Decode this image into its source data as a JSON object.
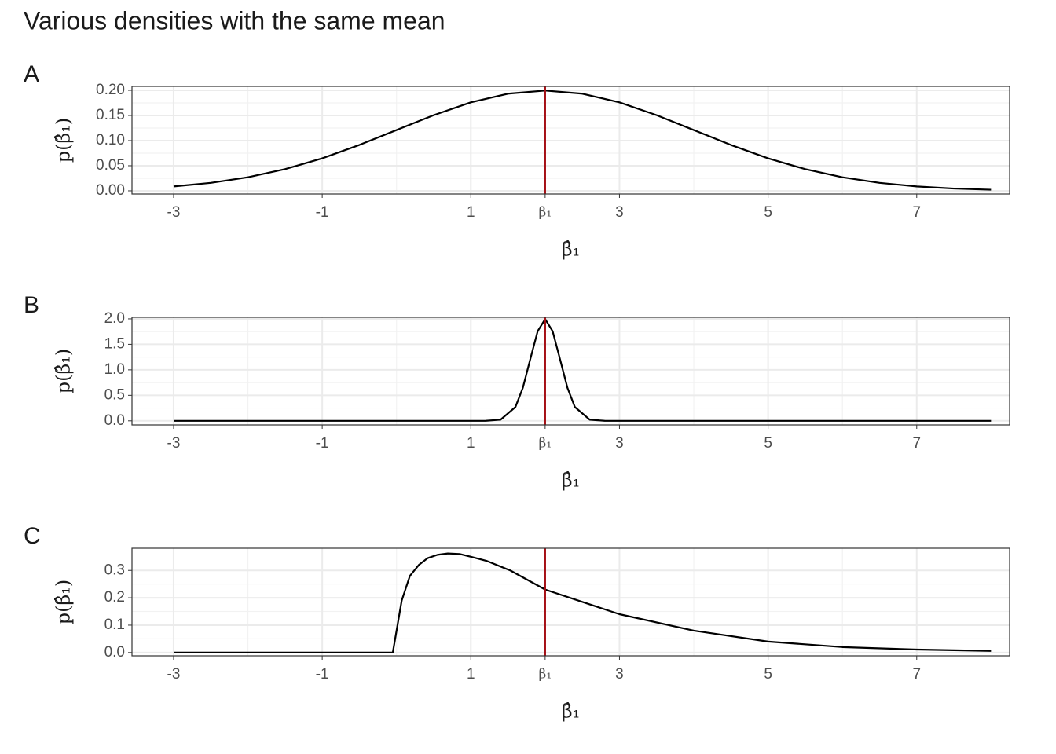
{
  "title": "Various densities with the same mean",
  "chart_data": [
    {
      "type": "line",
      "tag": "A",
      "xlabel": "β̂₁",
      "ylabel": "p(β̂₁)",
      "x": [
        -3,
        -2.5,
        -2,
        -1.5,
        -1,
        -0.5,
        0,
        0.5,
        1,
        1.5,
        2,
        2.5,
        3,
        3.5,
        4,
        4.5,
        5,
        5.5,
        6,
        6.5,
        7,
        7.5,
        8
      ],
      "values": [
        0.00876,
        0.01588,
        0.027,
        0.04315,
        0.06476,
        0.09132,
        0.12098,
        0.15056,
        0.17603,
        0.19333,
        0.19947,
        0.19333,
        0.17603,
        0.15056,
        0.12098,
        0.09132,
        0.06476,
        0.04315,
        0.027,
        0.01588,
        0.00876,
        0.00455,
        0.00222
      ],
      "color": "#000000",
      "vline": 2,
      "vline_color": "#a50f15",
      "xlim": [
        -3.56,
        8.25
      ],
      "ylim": [
        -0.0063,
        0.2078
      ],
      "xticks": [
        -3,
        -1,
        1,
        {
          "value": 2,
          "label": "β₁"
        },
        3,
        5,
        7
      ],
      "yticks": [
        {
          "value": 0,
          "label": "0.00"
        },
        {
          "value": 0.05,
          "label": "0.05"
        },
        {
          "value": 0.1,
          "label": "0.10"
        },
        {
          "value": 0.15,
          "label": "0.15"
        },
        {
          "value": 0.2,
          "label": "0.20"
        }
      ],
      "grid": true
    },
    {
      "type": "line",
      "tag": "B",
      "xlabel": "β̂₁",
      "ylabel": "p(β̂₁)",
      "x": [
        -3,
        1,
        1.2,
        1.4,
        1.6,
        1.7,
        1.8,
        1.9,
        2,
        2.1,
        2.2,
        2.3,
        2.4,
        2.6,
        2.8,
        3,
        8
      ],
      "values": [
        0,
        0,
        0.0007,
        0.0222,
        0.27,
        0.648,
        1.21,
        1.76,
        1.995,
        1.76,
        1.21,
        0.648,
        0.27,
        0.0222,
        0.0007,
        0,
        0
      ],
      "color": "#000000",
      "vline": 2,
      "vline_color": "#a50f15",
      "xlim": [
        -3.56,
        8.25
      ],
      "ylim": [
        -0.08,
        2.03
      ],
      "xticks": [
        -3,
        -1,
        1,
        {
          "value": 2,
          "label": "β₁"
        },
        3,
        5,
        7
      ],
      "yticks": [
        {
          "value": 0,
          "label": "0.0"
        },
        0.5,
        {
          "value": 1,
          "label": "1.0"
        },
        1.5,
        {
          "value": 2,
          "label": "2.0"
        }
      ],
      "grid": true
    },
    {
      "type": "line",
      "tag": "C",
      "xlabel": "β̂₁",
      "ylabel": "p(β̂₁)",
      "x": [
        -3,
        -0.05,
        0.07,
        0.18,
        0.3,
        0.42,
        0.55,
        0.69,
        0.85,
        1,
        1.21,
        1.53,
        2,
        3,
        4,
        5,
        6,
        7,
        8
      ],
      "values": [
        0,
        0,
        0.19,
        0.28,
        0.32,
        0.345,
        0.357,
        0.362,
        0.36,
        0.35,
        0.335,
        0.3,
        0.23,
        0.14,
        0.08,
        0.04,
        0.02,
        0.011,
        0.006
      ],
      "color": "#000000",
      "vline": 2,
      "vline_color": "#a50f15",
      "xlim": [
        -3.56,
        8.25
      ],
      "ylim": [
        -0.012,
        0.381
      ],
      "xticks": [
        -3,
        -1,
        1,
        {
          "value": 2,
          "label": "β₁"
        },
        3,
        5,
        7
      ],
      "yticks": [
        {
          "value": 0,
          "label": "0.0"
        },
        0.1,
        0.2,
        0.3
      ],
      "grid": true
    }
  ]
}
